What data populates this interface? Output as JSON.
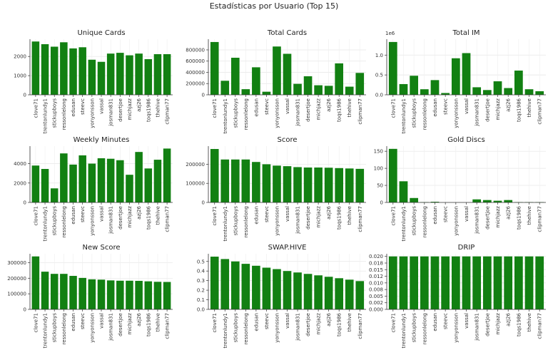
{
  "figure": {
    "suptitle": "Estadísticas por Usuario (Top 15)",
    "bar_color": "#128012",
    "grid": true
  },
  "chart_data": [
    {
      "type": "bar",
      "title": "Unique Cards",
      "categories": [
        "clove71",
        "trentonlundy1",
        "stickupboys",
        "ressonlelong",
        "edusan",
        "steevc",
        "yonyonsson",
        "vassal",
        "josman831",
        "desertjoe",
        "michjazz",
        "azj26",
        "toqs1986",
        "thehive",
        "clipman77"
      ],
      "values": [
        2780,
        2640,
        2510,
        2740,
        2420,
        2480,
        1830,
        1720,
        2150,
        2190,
        2060,
        2150,
        1860,
        2120,
        2120
      ],
      "ylim": [
        0,
        2900
      ],
      "yticks": [
        0,
        1000,
        2000
      ],
      "ytick_labels": [
        "0",
        "1000",
        "2000"
      ]
    },
    {
      "type": "bar",
      "title": "Total Cards",
      "categories": [
        "clove71",
        "trentonlundy1",
        "stickupboys",
        "ressonlelong",
        "edusan",
        "steevc",
        "yonyonsson",
        "vassal",
        "josman831",
        "desertjoe",
        "michjazz",
        "azj26",
        "toqs1986",
        "thehive",
        "clipman77"
      ],
      "values": [
        940000,
        250000,
        660000,
        100000,
        490000,
        55000,
        860000,
        730000,
        195000,
        330000,
        170000,
        160000,
        560000,
        145000,
        390000
      ],
      "ylim": [
        0,
        990000
      ],
      "yticks": [
        0,
        200000,
        400000,
        600000,
        800000
      ],
      "ytick_labels": [
        "0",
        "200000",
        "400000",
        "600000",
        "800000"
      ]
    },
    {
      "type": "bar",
      "title": "Total IM",
      "multiplier": "1e6",
      "categories": [
        "clove71",
        "trentonlundy1",
        "stickupboys",
        "ressonlelong",
        "edusan",
        "steevc",
        "yonyonsson",
        "vassal",
        "josman831",
        "desertjoe",
        "michjazz",
        "azj26",
        "toqs1986",
        "thehive",
        "clipman77"
      ],
      "values": [
        1330000,
        270000,
        480000,
        140000,
        370000,
        45000,
        920000,
        1050000,
        190000,
        120000,
        340000,
        170000,
        610000,
        140000,
        90000
      ],
      "ylim": [
        0,
        1400000
      ],
      "yticks": [
        0,
        500000,
        1000000
      ],
      "ytick_labels": [
        "0.0",
        "0.5",
        "1.0"
      ]
    },
    {
      "type": "bar",
      "title": "Weekly Minutes",
      "categories": [
        "clove71",
        "trentonlundy1",
        "stickupboys",
        "ressonlelong",
        "edusan",
        "steevc",
        "yonyonsson",
        "vassal",
        "josman831",
        "desertjoe",
        "michjazz",
        "azj26",
        "toqs1986",
        "thehive",
        "clipman77"
      ],
      "values": [
        3800,
        3450,
        1450,
        5050,
        3900,
        4850,
        4000,
        4550,
        4500,
        4350,
        2850,
        5200,
        3500,
        4400,
        5550
      ],
      "ylim": [
        0,
        5800
      ],
      "yticks": [
        0,
        2000,
        4000
      ],
      "ytick_labels": [
        "0",
        "2000",
        "4000"
      ]
    },
    {
      "type": "bar",
      "title": "Score",
      "categories": [
        "clove71",
        "trentonlundy1",
        "stickupboys",
        "ressonlelong",
        "edusan",
        "steevc",
        "yonyonsson",
        "vassal",
        "josman831",
        "desertjoe",
        "michjazz",
        "azj26",
        "toqs1986",
        "thehive",
        "clipman77"
      ],
      "values": [
        280000,
        225000,
        225000,
        225000,
        212000,
        200000,
        193000,
        190000,
        185000,
        183000,
        183000,
        182000,
        180000,
        178000,
        176000
      ],
      "ylim": [
        0,
        295000
      ],
      "yticks": [
        0,
        100000,
        200000
      ],
      "ytick_labels": [
        "0",
        "100000",
        "200000"
      ]
    },
    {
      "type": "bar",
      "title": "Gold Discs",
      "categories": [
        "clove71",
        "trentonlundy1",
        "stickupboys",
        "ressonlelong",
        "edusan",
        "steevc",
        "yonyonsson",
        "vassal",
        "josman831",
        "desertjoe",
        "michjazz",
        "azj26",
        "toqs1986",
        "thehive",
        "clipman77"
      ],
      "values": [
        157,
        62,
        13,
        1,
        2,
        0,
        0,
        0,
        9,
        7,
        5,
        7,
        1,
        1,
        1
      ],
      "ylim": [
        0,
        165
      ],
      "yticks": [
        0,
        50,
        100,
        150
      ],
      "ytick_labels": [
        "0",
        "50",
        "100",
        "150"
      ]
    },
    {
      "type": "bar",
      "title": "New Score",
      "categories": [
        "clove71",
        "trentonlundy1",
        "stickupboys",
        "ressonlelong",
        "edusan",
        "steevc",
        "yonyonsson",
        "vassal",
        "josman831",
        "desertjoe",
        "michjazz",
        "azj26",
        "toqs1986",
        "thehive",
        "clipman77"
      ],
      "values": [
        340000,
        242000,
        228000,
        228000,
        215000,
        202000,
        193000,
        191000,
        186000,
        184000,
        184000,
        183000,
        180000,
        177000,
        176000
      ],
      "ylim": [
        0,
        357000
      ],
      "yticks": [
        0,
        100000,
        200000,
        300000
      ],
      "ytick_labels": [
        "0",
        "100000",
        "200000",
        "300000"
      ]
    },
    {
      "type": "bar",
      "title": "SWAP.HIVE",
      "categories": [
        "clove71",
        "trentonlundy1",
        "stickupboys",
        "ressonlelong",
        "edusan",
        "steevc",
        "yonyonsson",
        "vassal",
        "josman831",
        "desertjoe",
        "michjazz",
        "azj26",
        "toqs1986",
        "thehive",
        "clipman77"
      ],
      "values": [
        0.55,
        0.525,
        0.5,
        0.475,
        0.455,
        0.435,
        0.42,
        0.4,
        0.385,
        0.37,
        0.355,
        0.34,
        0.325,
        0.31,
        0.295
      ],
      "ylim": [
        0,
        0.58
      ],
      "yticks": [
        0,
        0.1,
        0.2,
        0.3,
        0.4,
        0.5
      ],
      "ytick_labels": [
        "0.0",
        "0.1",
        "0.2",
        "0.3",
        "0.4",
        "0.5"
      ]
    },
    {
      "type": "bar",
      "title": "DRIP",
      "categories": [
        "clove71",
        "trentonlundy1",
        "stickupboys",
        "ressonlelong",
        "edusan",
        "steevc",
        "yonyonsson",
        "vassal",
        "josman831",
        "desertjoe",
        "michjazz",
        "azj26",
        "toqs1986",
        "thehive",
        "clipman77"
      ],
      "values": [
        0.02,
        0.02,
        0.02,
        0.02,
        0.02,
        0.02,
        0.02,
        0.02,
        0.02,
        0.02,
        0.02,
        0.02,
        0.02,
        0.02,
        0.02
      ],
      "ylim": [
        0,
        0.021
      ],
      "yticks": [
        0,
        0.0025,
        0.005,
        0.0075,
        0.01,
        0.0125,
        0.015,
        0.0175,
        0.02
      ],
      "ytick_labels": [
        "0.000",
        "0.002",
        "0.005",
        "0.008",
        "0.010",
        "0.012",
        "0.015",
        "0.018",
        "0.020"
      ]
    }
  ]
}
